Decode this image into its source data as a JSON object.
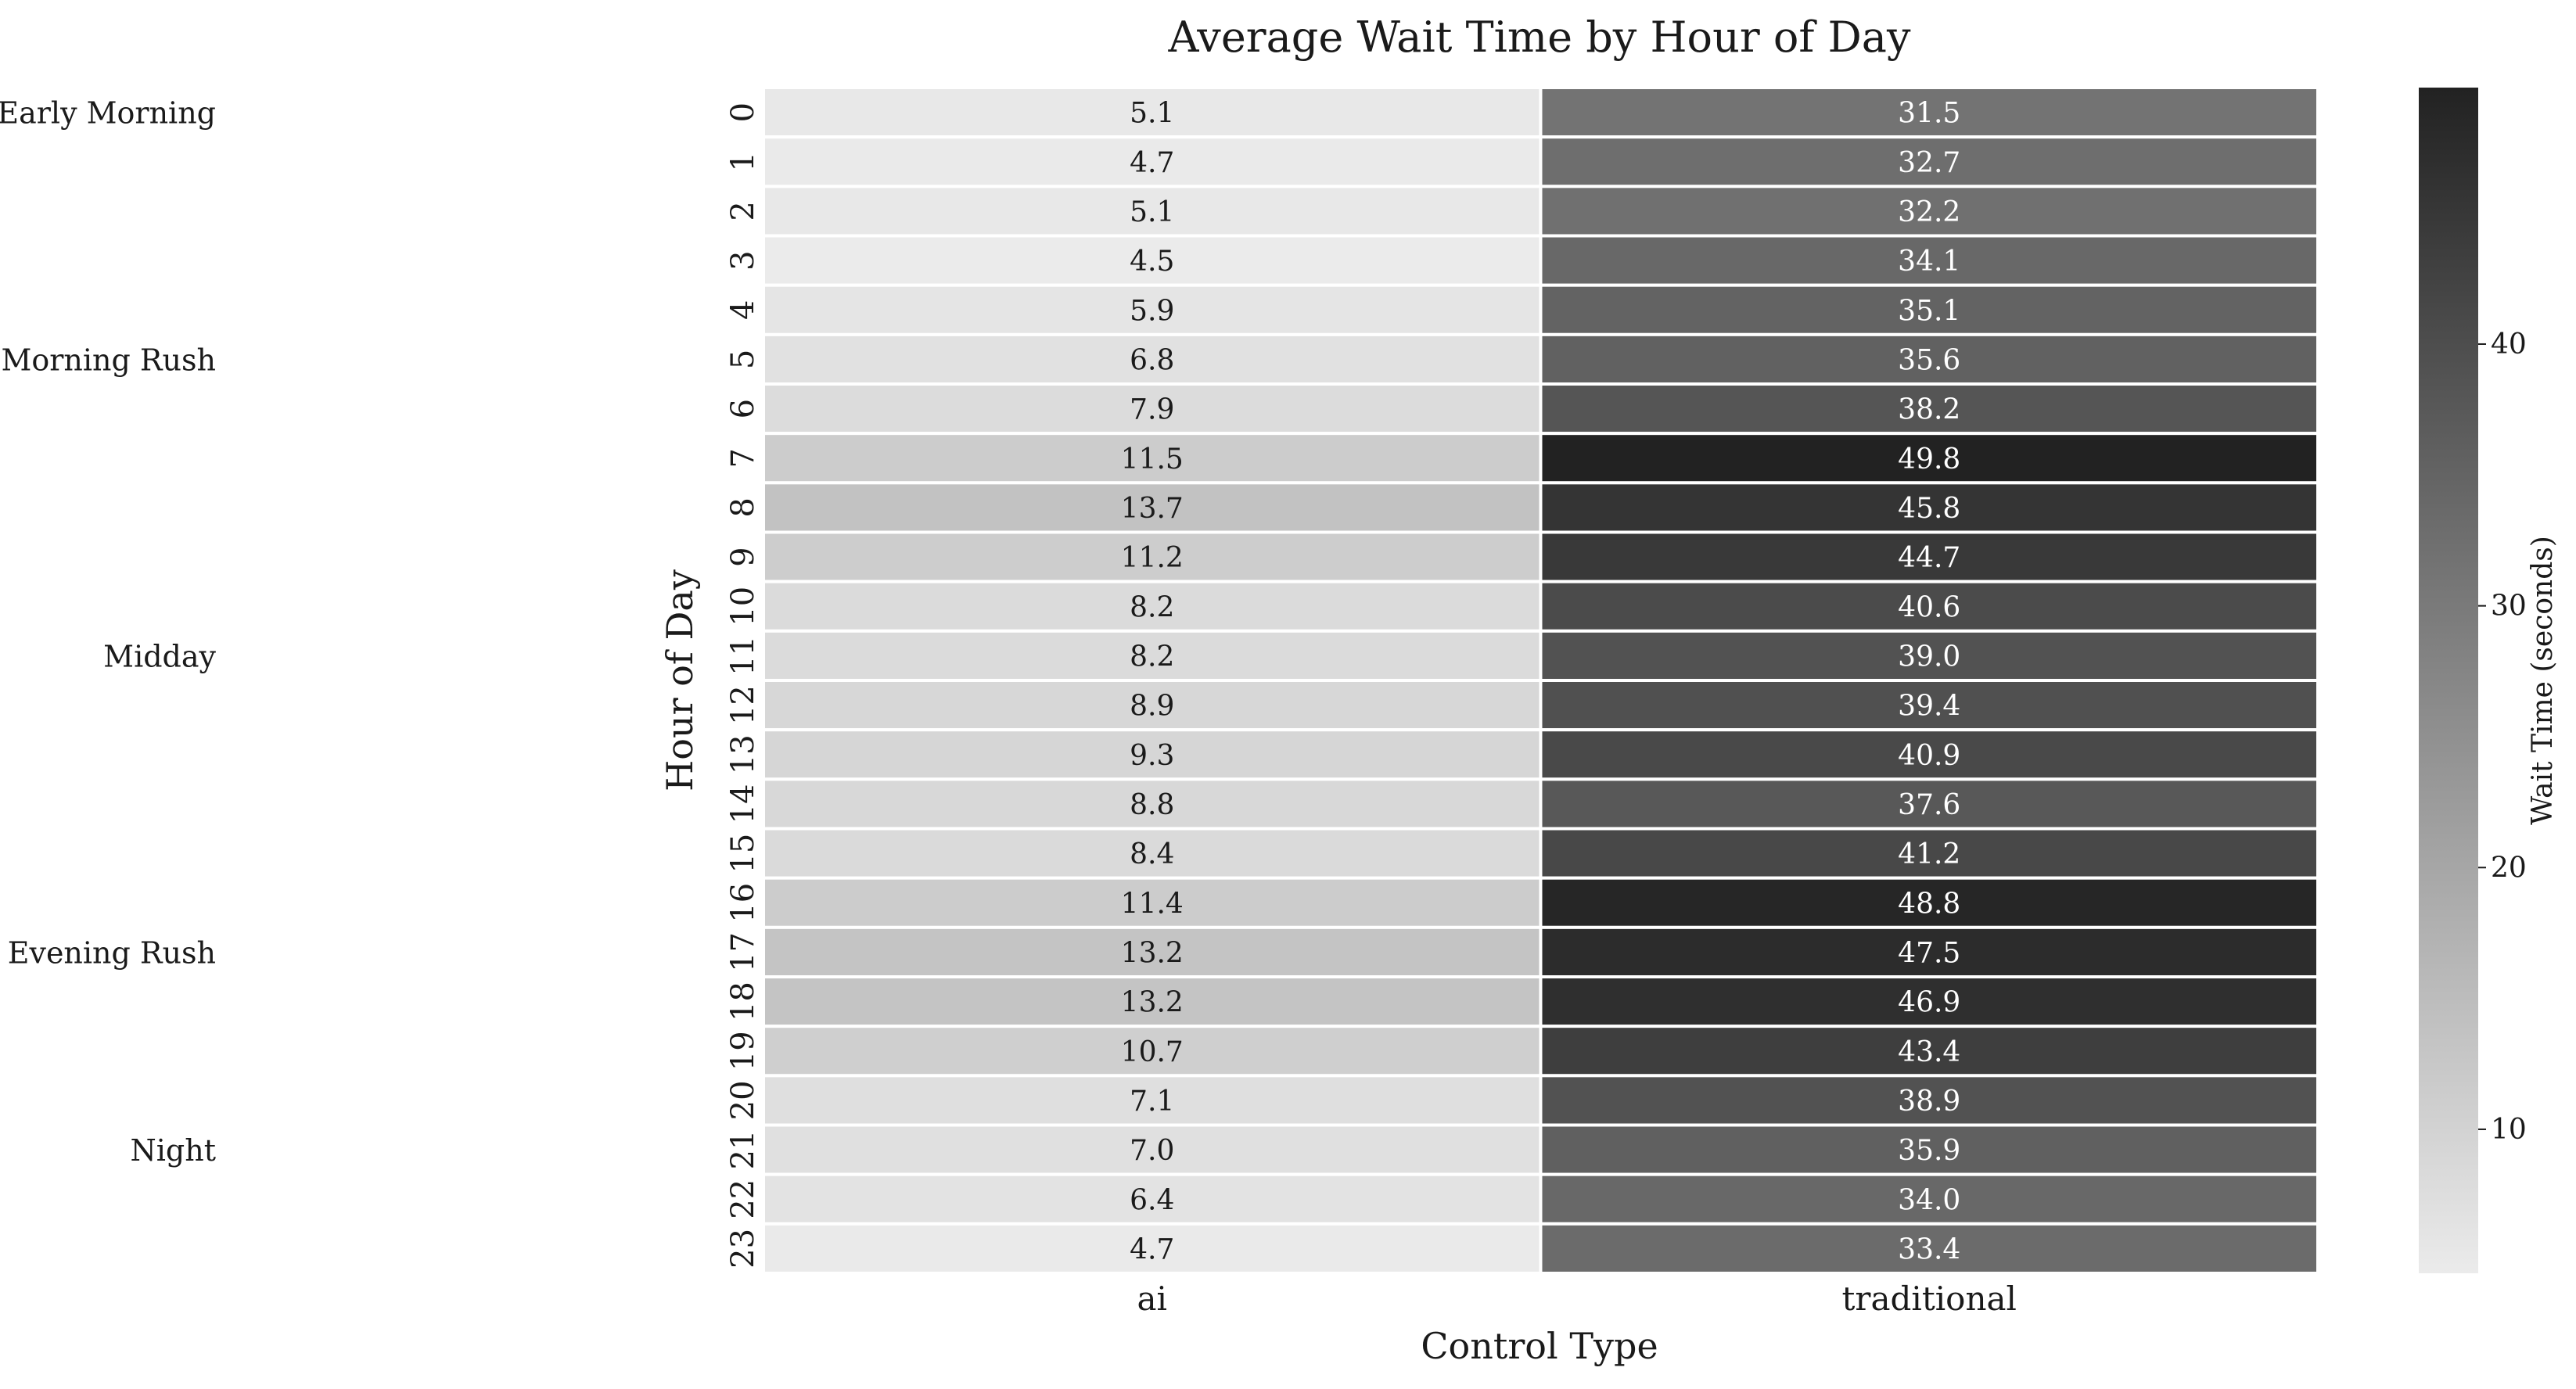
{
  "chart_data": {
    "type": "heatmap",
    "title": "Average Wait Time by Hour of Day",
    "xlabel": "Control Type",
    "ylabel": "Hour of Day",
    "columns": [
      "ai",
      "traditional"
    ],
    "rows": [
      "0",
      "1",
      "2",
      "3",
      "4",
      "5",
      "6",
      "7",
      "8",
      "9",
      "10",
      "11",
      "12",
      "13",
      "14",
      "15",
      "16",
      "17",
      "18",
      "19",
      "20",
      "21",
      "22",
      "23"
    ],
    "values": [
      [
        5.1,
        31.5
      ],
      [
        4.7,
        32.7
      ],
      [
        5.1,
        32.2
      ],
      [
        4.5,
        34.1
      ],
      [
        5.9,
        35.1
      ],
      [
        6.8,
        35.6
      ],
      [
        7.9,
        38.2
      ],
      [
        11.5,
        49.8
      ],
      [
        13.7,
        45.8
      ],
      [
        11.2,
        44.7
      ],
      [
        8.2,
        40.6
      ],
      [
        8.2,
        39.0
      ],
      [
        8.9,
        39.4
      ],
      [
        9.3,
        40.9
      ],
      [
        8.8,
        37.6
      ],
      [
        8.4,
        41.2
      ],
      [
        11.4,
        48.8
      ],
      [
        13.2,
        47.5
      ],
      [
        13.2,
        46.9
      ],
      [
        10.7,
        43.4
      ],
      [
        7.1,
        38.9
      ],
      [
        7.0,
        35.9
      ],
      [
        6.4,
        34.0
      ],
      [
        4.7,
        33.4
      ]
    ],
    "value_labels": [
      [
        "5.1",
        "31.5"
      ],
      [
        "4.7",
        "32.7"
      ],
      [
        "5.1",
        "32.2"
      ],
      [
        "4.5",
        "34.1"
      ],
      [
        "5.9",
        "35.1"
      ],
      [
        "6.8",
        "35.6"
      ],
      [
        "7.9",
        "38.2"
      ],
      [
        "11.5",
        "49.8"
      ],
      [
        "13.7",
        "45.8"
      ],
      [
        "11.2",
        "44.7"
      ],
      [
        "8.2",
        "40.6"
      ],
      [
        "8.2",
        "39.0"
      ],
      [
        "8.9",
        "39.4"
      ],
      [
        "9.3",
        "40.9"
      ],
      [
        "8.8",
        "37.6"
      ],
      [
        "8.4",
        "41.2"
      ],
      [
        "11.4",
        "48.8"
      ],
      [
        "13.2",
        "47.5"
      ],
      [
        "13.2",
        "46.9"
      ],
      [
        "10.7",
        "43.4"
      ],
      [
        "7.1",
        "38.9"
      ],
      [
        "7.0",
        "35.9"
      ],
      [
        "6.4",
        "34.0"
      ],
      [
        "4.7",
        "33.4"
      ]
    ],
    "colorbar": {
      "label": "Wait Time (seconds)",
      "ticks": [
        10,
        20,
        30,
        40
      ],
      "tick_labels": [
        "10",
        "20",
        "30",
        "40"
      ],
      "min": 4.5,
      "max": 49.8,
      "color_low": "#ebebeb",
      "color_high": "#222222"
    },
    "annotations": [
      {
        "text": "Early Morning",
        "row": 0
      },
      {
        "text": "Morning Rush",
        "row": 5
      },
      {
        "text": "Midday",
        "row": 11
      },
      {
        "text": "Evening Rush",
        "row": 17
      },
      {
        "text": "Night",
        "row": 21
      }
    ],
    "grid": false
  }
}
